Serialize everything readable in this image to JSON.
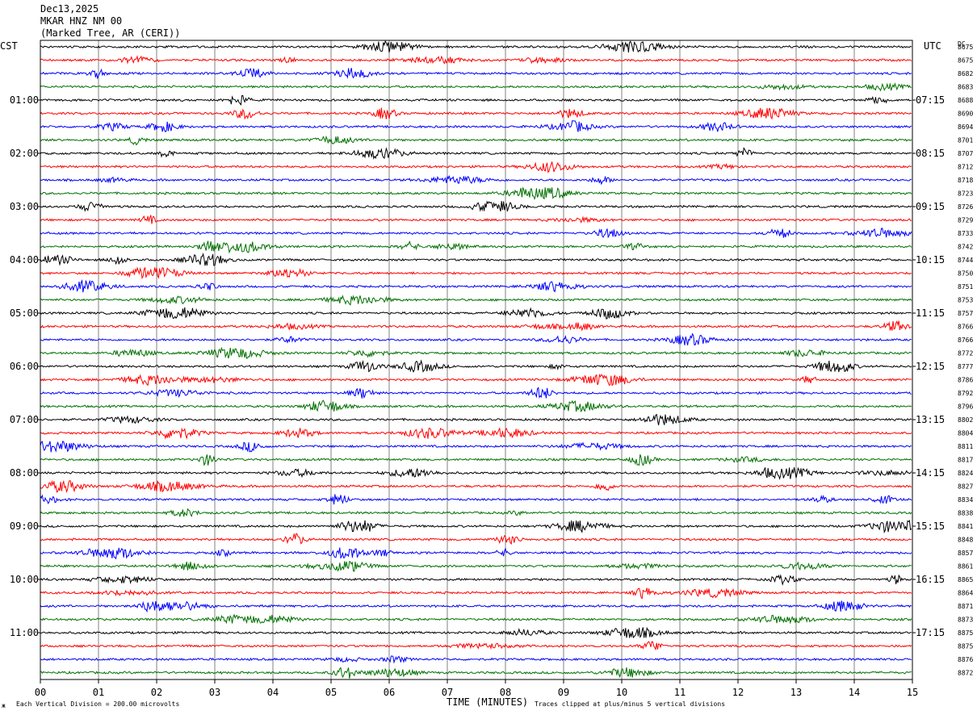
{
  "header": {
    "date": "Dec13,2025",
    "station": "MKAR HNZ NM 00",
    "location": "(Marked Tree, AR (CERI))"
  },
  "left_label": "CST",
  "right_label": "UTC",
  "dc_label": "DC",
  "footer": {
    "scale_note": "Each Vertical Division =  200.00 microvolts",
    "xlabel": "TIME (MINUTES)",
    "clip_note": "Traces clipped at plus/minus 5 vertical divisions",
    "corner_mark": "ж"
  },
  "colors": {
    "trace_cycle": [
      "#000000",
      "#ff0000",
      "#0000ff",
      "#007000"
    ],
    "grid": "#808080",
    "frame": "#000000"
  },
  "chart_data": {
    "type": "line",
    "title": "",
    "xlabel": "TIME (MINUTES)",
    "x_ticks": [
      "00",
      "01",
      "02",
      "03",
      "04",
      "05",
      "06",
      "07",
      "08",
      "09",
      "10",
      "11",
      "12",
      "13",
      "14",
      "15"
    ],
    "xlim": [
      0,
      15
    ],
    "rows_per_hour": 4,
    "left_hour_labels": [
      "01:00",
      "02:00",
      "03:00",
      "04:00",
      "05:00",
      "06:00",
      "07:00",
      "08:00",
      "09:00",
      "10:00",
      "11:00"
    ],
    "right_hour_labels": [
      "07:15",
      "08:15",
      "09:15",
      "10:15",
      "11:15",
      "12:15",
      "13:15",
      "14:15",
      "15:15",
      "16:15",
      "17:15"
    ],
    "dc_offsets": [
      8675,
      8675,
      8682,
      8683,
      8688,
      8690,
      8694,
      8701,
      8707,
      8712,
      8718,
      8723,
      8726,
      8729,
      8733,
      8742,
      8744,
      8750,
      8751,
      8753,
      8757,
      8766,
      8766,
      8772,
      8777,
      8786,
      8792,
      8796,
      8802,
      8804,
      8811,
      8817,
      8824,
      8827,
      8834,
      8838,
      8841,
      8848,
      8857,
      8861,
      8865,
      8864,
      8871,
      8873,
      8875,
      8875,
      8876,
      8872
    ],
    "scale_microvolts_per_division": 200.0,
    "clip_divisions": 5
  }
}
